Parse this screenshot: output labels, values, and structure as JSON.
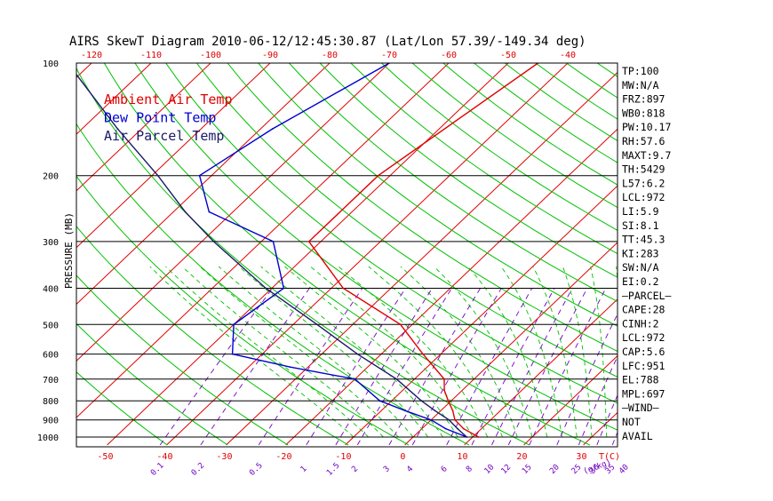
{
  "title": "AIRS SkewT Diagram 2010-06-12/12:45:30.87 (Lat/Lon 57.39/-149.34 deg)",
  "colors": {
    "ambient": "#e00000",
    "dewpoint": "#0000d0",
    "parcel": "#1a1a66",
    "isotherm": "#e00000",
    "dry_adiabat": "#00c000",
    "moist_adiabat": "#00c000",
    "mixing_ratio": "#7000c0",
    "isobar": "#000000"
  },
  "legend": [
    {
      "label": "Ambient Air Temp",
      "color": "#e00000"
    },
    {
      "label": "Dew Point Temp",
      "color": "#0000d0"
    },
    {
      "label": "Air Parcel Temp",
      "color": "#1a1a66"
    }
  ],
  "stats": [
    "TP:100",
    "MW:N/A",
    "FRZ:897",
    "WB0:818",
    "PW:10.17",
    "RH:57.6",
    "MAXT:9.7",
    "TH:5429",
    "L57:6.2",
    "LCL:972",
    "LI:5.9",
    "SI:8.1",
    "TT:45.3",
    "KI:283",
    "SW:N/A",
    "EI:0.2",
    "—PARCEL—",
    "CAPE:28",
    "CINH:2",
    "LCL:972",
    "CAP:5.6",
    "LFC:951",
    "EL:788",
    "MPL:697",
    "—WIND—",
    "NOT",
    "AVAIL"
  ],
  "chart_data": {
    "type": "line",
    "title": "AIRS SkewT Diagram 2010-06-12/12:45:30.87 (Lat/Lon 57.39/-149.34 deg)",
    "ylabel": "PRESSURE (MB)",
    "xlabel_bottom_unit": "T(C)",
    "mixing_ratio_unit": "(g/kg)",
    "y_scale": "log",
    "ylim": [
      1050,
      100
    ],
    "pressure_ticks": [
      100,
      200,
      300,
      400,
      500,
      600,
      700,
      800,
      900,
      1000
    ],
    "isobar_lines": [
      200,
      300,
      400,
      500,
      600,
      700,
      800,
      900,
      1000
    ],
    "top_temp_ticks": [
      -120,
      -110,
      -100,
      -90,
      -80,
      -70,
      -60,
      -50,
      -40
    ],
    "bottom_temp_ticks": [
      -50,
      -40,
      -30,
      -20,
      -10,
      0,
      10,
      20,
      30
    ],
    "mixing_ratio_labels": [
      "0.1",
      "0.2",
      "0.5",
      "1",
      "1.5",
      "2",
      "3",
      "4",
      "6",
      "8",
      "10",
      "12",
      "15",
      "20",
      "25",
      "30",
      "35",
      "40"
    ],
    "mixing_ratio_values": [
      0.1,
      0.2,
      0.5,
      1,
      1.5,
      2,
      3,
      4,
      6,
      8,
      10,
      12,
      15,
      20,
      25,
      30,
      35,
      40
    ],
    "series": [
      {
        "name": "Ambient Air Temp",
        "color": "#e00000",
        "points": [
          [
            1000,
            11
          ],
          [
            950,
            7
          ],
          [
            900,
            4
          ],
          [
            850,
            2
          ],
          [
            800,
            -0.5
          ],
          [
            750,
            -3
          ],
          [
            700,
            -5
          ],
          [
            600,
            -13
          ],
          [
            500,
            -22
          ],
          [
            400,
            -38
          ],
          [
            300,
            -52
          ],
          [
            200,
            -52
          ],
          [
            100,
            -45
          ]
        ]
      },
      {
        "name": "Dew Point Temp",
        "color": "#0000d0",
        "points": [
          [
            1000,
            9
          ],
          [
            950,
            4
          ],
          [
            900,
            0
          ],
          [
            850,
            -6
          ],
          [
            800,
            -12
          ],
          [
            700,
            -20
          ],
          [
            650,
            -33
          ],
          [
            600,
            -45
          ],
          [
            500,
            -50
          ],
          [
            400,
            -48
          ],
          [
            300,
            -58
          ],
          [
            250,
            -74
          ],
          [
            200,
            -82
          ],
          [
            150,
            -78
          ],
          [
            100,
            -70
          ]
        ]
      },
      {
        "name": "Air Parcel Temp",
        "color": "#1a1a66",
        "points": [
          [
            1000,
            9
          ],
          [
            950,
            6
          ],
          [
            900,
            3
          ],
          [
            850,
            -1
          ],
          [
            800,
            -5
          ],
          [
            700,
            -13
          ],
          [
            600,
            -24
          ],
          [
            500,
            -36
          ],
          [
            400,
            -51
          ],
          [
            300,
            -68
          ],
          [
            250,
            -78
          ],
          [
            200,
            -89
          ],
          [
            150,
            -104
          ],
          [
            100,
            -124
          ]
        ]
      }
    ]
  }
}
